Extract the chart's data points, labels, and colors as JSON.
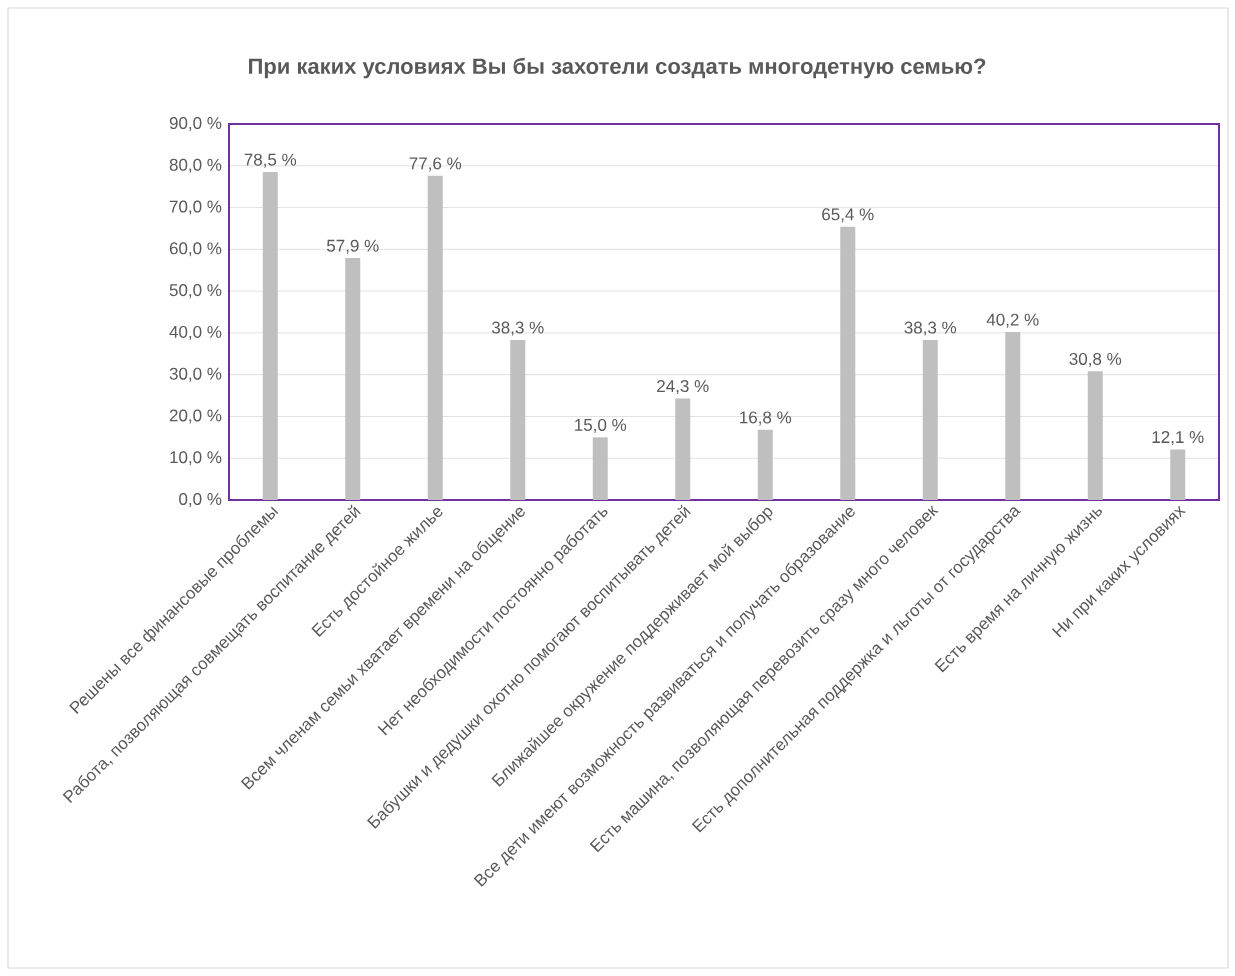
{
  "chart_data": {
    "type": "bar",
    "title": "При каких условиях Вы бы захотели создать многодетную семью?",
    "categories": [
      "Решены все финансовые проблемы",
      "Работа, позволяющая совмещать воспитание детей",
      "Есть достойное жилье",
      "Всем членам семьи хватает времени на общение",
      "Нет необходимости постоянно работать",
      "Бабушки и дедушки охотно помогают воспитывать детей",
      "Ближайшее окружение поддерживает мой выбор",
      "Все дети имеют возможность развиваться и получать образование",
      "Есть машина, позволяющая перевозить сразу много человек",
      "Есть дополнительная поддержка и льготы от государства",
      "Есть время на личную жизнь",
      "Ни при каких условиях"
    ],
    "values": [
      78.5,
      57.9,
      77.6,
      38.3,
      15.0,
      24.3,
      16.8,
      65.4,
      38.3,
      40.2,
      30.8,
      12.1
    ],
    "value_labels": [
      "78,5 %",
      "57,9 %",
      "77,6 %",
      "38,3 %",
      "15,0 %",
      "24,3 %",
      "16,8 %",
      "65,4 %",
      "38,3 %",
      "40,2 %",
      "30,8 %",
      "12,1 %"
    ],
    "color": "#bfbfbf",
    "ylim": [
      0,
      90
    ],
    "yticks": [
      {
        "value": 0,
        "label": "0,0 %"
      },
      {
        "value": 10,
        "label": "10,0 %"
      },
      {
        "value": 20,
        "label": "20,0 %"
      },
      {
        "value": 30,
        "label": "30,0 %"
      },
      {
        "value": 40,
        "label": "40,0 %"
      },
      {
        "value": 50,
        "label": "50,0 %"
      },
      {
        "value": 60,
        "label": "60,0 %"
      },
      {
        "value": 70,
        "label": "70,0 %"
      },
      {
        "value": 80,
        "label": "80,0 %"
      },
      {
        "value": 90,
        "label": "90,0 %"
      }
    ],
    "grid": "y"
  }
}
